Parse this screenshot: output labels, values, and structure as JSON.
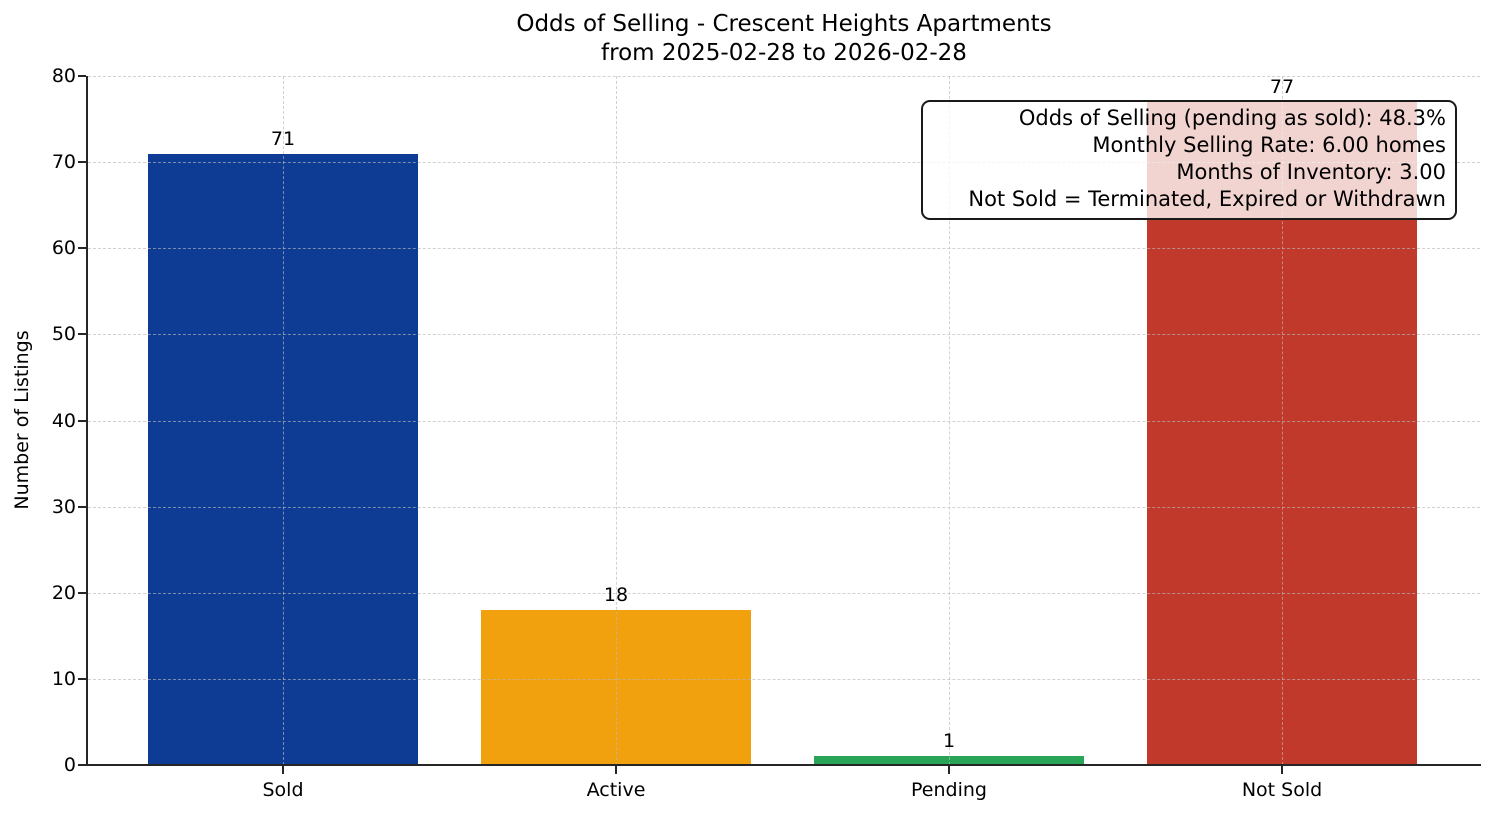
{
  "title": {
    "line1": "Odds of Selling - Crescent Heights Apartments",
    "line2": "from 2025-02-28 to 2026-02-28"
  },
  "chart_data": {
    "type": "bar",
    "title": "Odds of Selling - Crescent Heights Apartments\nfrom 2025-02-28 to 2026-02-28",
    "categories": [
      "Sold",
      "Active",
      "Pending",
      "Not Sold"
    ],
    "values": [
      71,
      18,
      1,
      77
    ],
    "bar_colors": [
      "#0e3b94",
      "#f2a10e",
      "#2aa558",
      "#c0392b"
    ],
    "xlabel": "",
    "ylabel": "Number of Listings",
    "ylim": [
      0,
      80
    ],
    "yticks": [
      0,
      10,
      20,
      30,
      40,
      50,
      60,
      70,
      80
    ],
    "grid": true,
    "grid_style": "dashed",
    "legend": "none",
    "annotation": {
      "position": "top-right",
      "lines": [
        "Odds of Selling (pending as sold): 48.3%",
        "Monthly Selling Rate: 6.00 homes",
        "Months of Inventory: 3.00",
        "Not Sold = Terminated, Expired or Withdrawn"
      ]
    }
  }
}
